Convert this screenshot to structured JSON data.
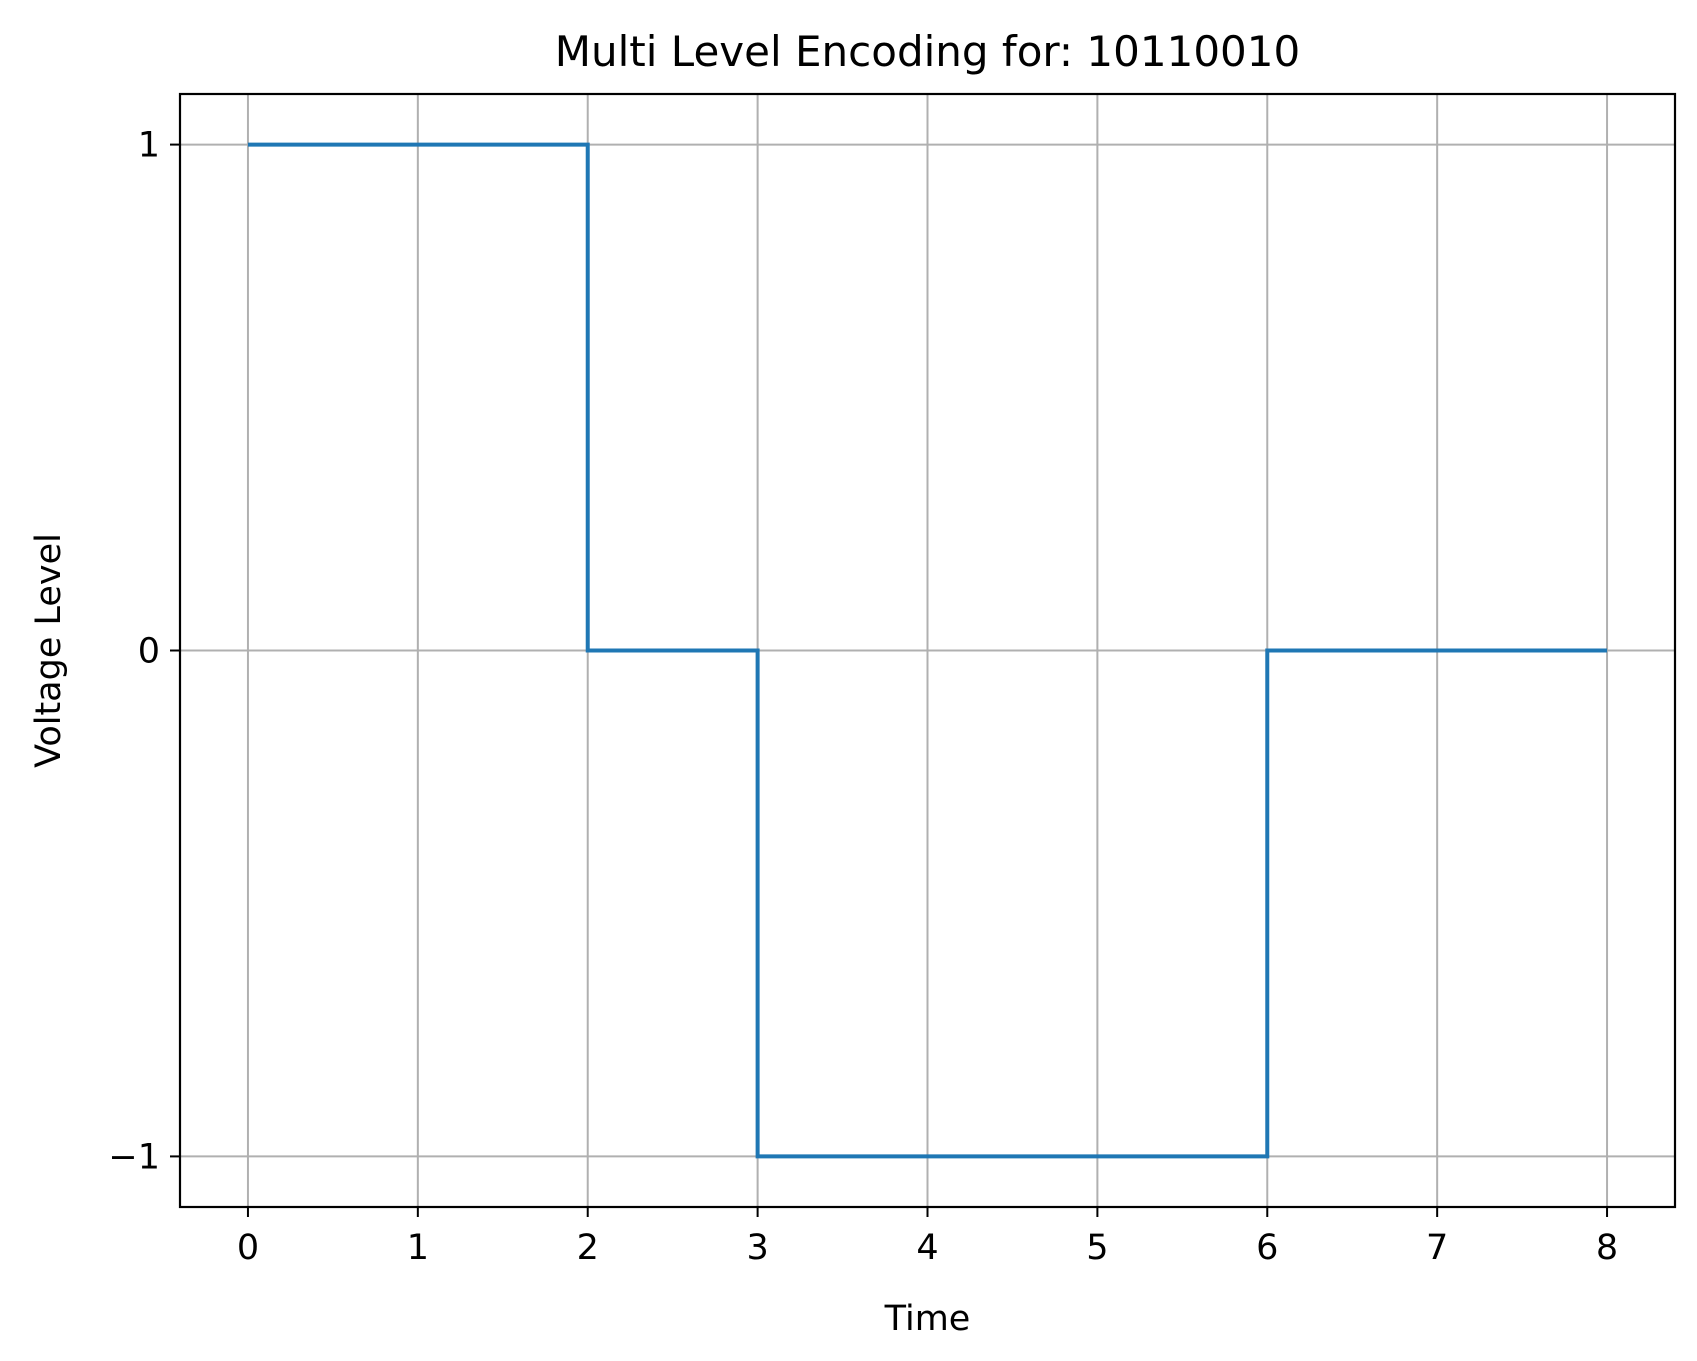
{
  "chart_data": {
    "type": "line",
    "step": "post",
    "title": "Multi Level Encoding for: 10110010",
    "xlabel": "Time",
    "ylabel": "Voltage Level",
    "xlim": [
      -0.4,
      8.4
    ],
    "ylim": [
      -1.1,
      1.1
    ],
    "xticks": [
      0,
      1,
      2,
      3,
      4,
      5,
      6,
      7,
      8
    ],
    "xtick_labels": [
      "0",
      "1",
      "2",
      "3",
      "4",
      "5",
      "6",
      "7",
      "8"
    ],
    "yticks": [
      -1,
      0,
      1
    ],
    "ytick_labels": [
      "−1",
      "0",
      "1"
    ],
    "grid": true,
    "series": [
      {
        "color": "#1f77b4",
        "x": [
          0,
          1,
          2,
          3,
          4,
          5,
          6,
          7,
          8
        ],
        "y": [
          1,
          1,
          0,
          -1,
          -1,
          -1,
          0,
          0,
          0
        ]
      }
    ],
    "colors": {
      "grid": "#b0b0b0",
      "axes": "#000000",
      "line": "#1f77b4"
    }
  }
}
